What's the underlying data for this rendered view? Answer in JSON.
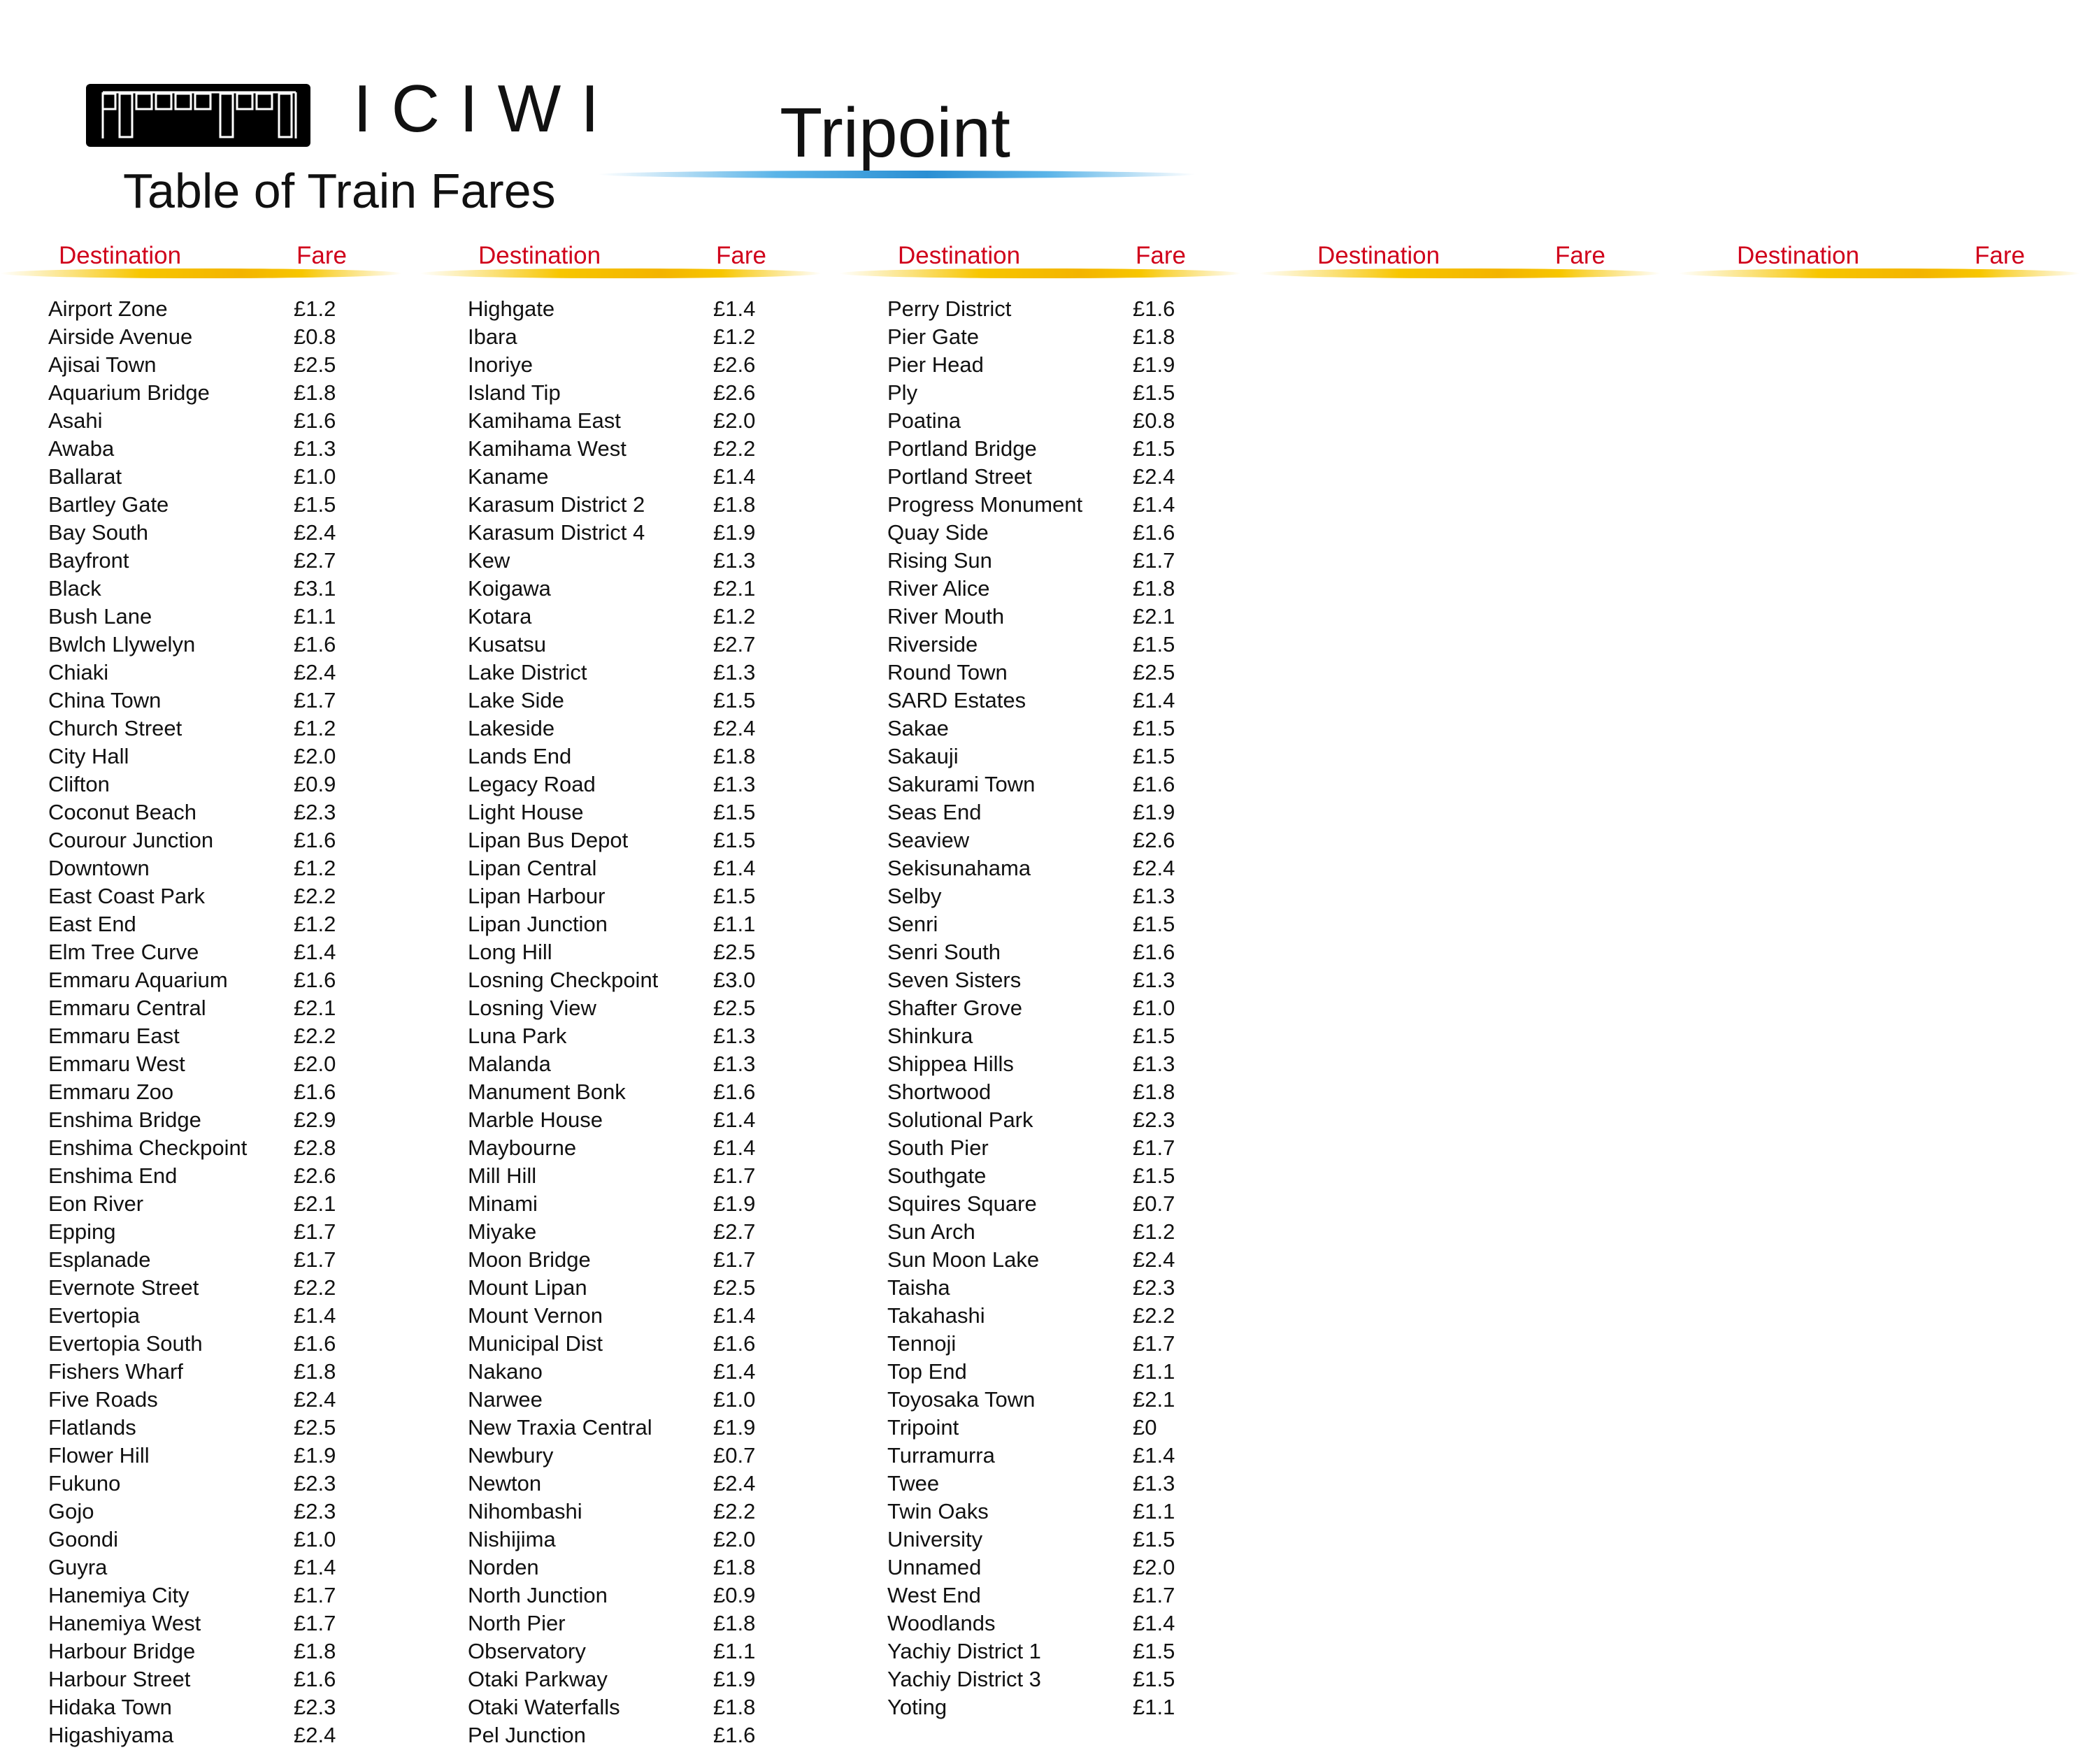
{
  "brand": {
    "name": "ICIWI",
    "subtitle": "Table of Train Fares"
  },
  "station": {
    "name": "Tripoint"
  },
  "colors": {
    "header_text": "#d0021b",
    "header_rule": "#f3b400",
    "station_rule": "#2b8fd3",
    "logo_bg": "#000000"
  },
  "icons": {
    "logo": "train-car-icon"
  },
  "table": {
    "columns": [
      {
        "dest_label": "Destination",
        "fare_label": "Fare",
        "rows": [
          {
            "d": "Airport Zone",
            "f": "£1.2"
          },
          {
            "d": "Airside Avenue",
            "f": "£0.8"
          },
          {
            "d": "Ajisai Town",
            "f": "£2.5"
          },
          {
            "d": "Aquarium Bridge",
            "f": "£1.8"
          },
          {
            "d": "Asahi",
            "f": "£1.6"
          },
          {
            "d": "Awaba",
            "f": "£1.3"
          },
          {
            "d": "Ballarat",
            "f": "£1.0"
          },
          {
            "d": "Bartley Gate",
            "f": "£1.5"
          },
          {
            "d": "Bay South",
            "f": "£2.4"
          },
          {
            "d": "Bayfront",
            "f": "£2.7"
          },
          {
            "d": "Black",
            "f": "£3.1"
          },
          {
            "d": "Bush Lane",
            "f": "£1.1"
          },
          {
            "d": "Bwlch Llywelyn",
            "f": "£1.6"
          },
          {
            "d": "Chiaki",
            "f": "£2.4"
          },
          {
            "d": "China Town",
            "f": "£1.7"
          },
          {
            "d": "Church Street",
            "f": "£1.2"
          },
          {
            "d": "City Hall",
            "f": "£2.0"
          },
          {
            "d": "Clifton",
            "f": "£0.9"
          },
          {
            "d": "Coconut Beach",
            "f": "£2.3"
          },
          {
            "d": "Courour Junction",
            "f": "£1.6"
          },
          {
            "d": "Downtown",
            "f": "£1.2"
          },
          {
            "d": "East Coast Park",
            "f": "£2.2"
          },
          {
            "d": "East End",
            "f": "£1.2"
          },
          {
            "d": "Elm Tree Curve",
            "f": "£1.4"
          },
          {
            "d": "Emmaru Aquarium",
            "f": "£1.6"
          },
          {
            "d": "Emmaru Central",
            "f": "£2.1"
          },
          {
            "d": "Emmaru East",
            "f": "£2.2"
          },
          {
            "d": "Emmaru West",
            "f": "£2.0"
          },
          {
            "d": "Emmaru Zoo",
            "f": "£1.6"
          },
          {
            "d": "Enshima Bridge",
            "f": "£2.9"
          },
          {
            "d": "Enshima Checkpoint",
            "f": "£2.8"
          },
          {
            "d": "Enshima End",
            "f": "£2.6"
          },
          {
            "d": "Eon River",
            "f": "£2.1"
          },
          {
            "d": "Epping",
            "f": "£1.7"
          },
          {
            "d": "Esplanade",
            "f": "£1.7"
          },
          {
            "d": "Evernote Street",
            "f": "£2.2"
          },
          {
            "d": "Evertopia",
            "f": "£1.4"
          },
          {
            "d": "Evertopia South",
            "f": "£1.6"
          },
          {
            "d": "Fishers Wharf",
            "f": "£1.8"
          },
          {
            "d": "Five Roads",
            "f": "£2.4"
          },
          {
            "d": "Flatlands",
            "f": "£2.5"
          },
          {
            "d": "Flower Hill",
            "f": "£1.9"
          },
          {
            "d": "Fukuno",
            "f": "£2.3"
          },
          {
            "d": "Gojo",
            "f": "£2.3"
          },
          {
            "d": "Goondi",
            "f": "£1.0"
          },
          {
            "d": "Guyra",
            "f": "£1.4"
          },
          {
            "d": "Hanemiya City",
            "f": "£1.7"
          },
          {
            "d": "Hanemiya West",
            "f": "£1.7"
          },
          {
            "d": "Harbour Bridge",
            "f": "£1.8"
          },
          {
            "d": "Harbour Street",
            "f": "£1.6"
          },
          {
            "d": "Hidaka Town",
            "f": "£2.3"
          },
          {
            "d": "Higashiyama",
            "f": "£2.4"
          }
        ]
      },
      {
        "dest_label": "Destination",
        "fare_label": "Fare",
        "rows": [
          {
            "d": "Highgate",
            "f": "£1.4"
          },
          {
            "d": "Ibara",
            "f": "£1.2"
          },
          {
            "d": "Inoriye",
            "f": "£2.6"
          },
          {
            "d": "Island Tip",
            "f": "£2.6"
          },
          {
            "d": "Kamihama East",
            "f": "£2.0"
          },
          {
            "d": "Kamihama West",
            "f": "£2.2"
          },
          {
            "d": "Kaname",
            "f": "£1.4"
          },
          {
            "d": "Karasum District 2",
            "f": "£1.8"
          },
          {
            "d": "Karasum District 4",
            "f": "£1.9"
          },
          {
            "d": "Kew",
            "f": "£1.3"
          },
          {
            "d": "Koigawa",
            "f": "£2.1"
          },
          {
            "d": "Kotara",
            "f": "£1.2"
          },
          {
            "d": "Kusatsu",
            "f": "£2.7"
          },
          {
            "d": "Lake District",
            "f": "£1.3"
          },
          {
            "d": "Lake Side",
            "f": "£1.5"
          },
          {
            "d": "Lakeside",
            "f": "£2.4"
          },
          {
            "d": "Lands End",
            "f": "£1.8"
          },
          {
            "d": "Legacy Road",
            "f": "£1.3"
          },
          {
            "d": "Light House",
            "f": "£1.5"
          },
          {
            "d": "Lipan Bus Depot",
            "f": "£1.5"
          },
          {
            "d": "Lipan Central",
            "f": "£1.4"
          },
          {
            "d": "Lipan Harbour",
            "f": "£1.5"
          },
          {
            "d": "Lipan Junction",
            "f": "£1.1"
          },
          {
            "d": "Long Hill",
            "f": "£2.5"
          },
          {
            "d": "Losning Checkpoint",
            "f": "£3.0"
          },
          {
            "d": "Losning View",
            "f": "£2.5"
          },
          {
            "d": "Luna Park",
            "f": "£1.3"
          },
          {
            "d": "Malanda",
            "f": "£1.3"
          },
          {
            "d": "Manument Bonk",
            "f": "£1.6"
          },
          {
            "d": "Marble House",
            "f": "£1.4"
          },
          {
            "d": "Maybourne",
            "f": "£1.4"
          },
          {
            "d": "Mill Hill",
            "f": "£1.7"
          },
          {
            "d": "Minami",
            "f": "£1.9"
          },
          {
            "d": "Miyake",
            "f": "£2.7"
          },
          {
            "d": "Moon Bridge",
            "f": "£1.7"
          },
          {
            "d": "Mount Lipan",
            "f": "£2.5"
          },
          {
            "d": "Mount Vernon",
            "f": "£1.4"
          },
          {
            "d": "Municipal Dist",
            "f": "£1.6"
          },
          {
            "d": "Nakano",
            "f": "£1.4"
          },
          {
            "d": "Narwee",
            "f": "£1.0"
          },
          {
            "d": "New Traxia Central",
            "f": "£1.9"
          },
          {
            "d": "Newbury",
            "f": "£0.7"
          },
          {
            "d": "Newton",
            "f": "£2.4"
          },
          {
            "d": "Nihombashi",
            "f": "£2.2"
          },
          {
            "d": "Nishijima",
            "f": "£2.0"
          },
          {
            "d": "Norden",
            "f": "£1.8"
          },
          {
            "d": "North Junction",
            "f": "£0.9"
          },
          {
            "d": "North Pier",
            "f": "£1.8"
          },
          {
            "d": "Observatory",
            "f": "£1.1"
          },
          {
            "d": "Otaki Parkway",
            "f": "£1.9"
          },
          {
            "d": "Otaki Waterfalls",
            "f": "£1.8"
          },
          {
            "d": "Pel Junction",
            "f": "£1.6"
          }
        ]
      },
      {
        "dest_label": "Destination",
        "fare_label": "Fare",
        "rows": [
          {
            "d": "Perry District",
            "f": "£1.6"
          },
          {
            "d": "Pier Gate",
            "f": "£1.8"
          },
          {
            "d": "Pier Head",
            "f": "£1.9"
          },
          {
            "d": "Ply",
            "f": "£1.5"
          },
          {
            "d": "Poatina",
            "f": "£0.8"
          },
          {
            "d": "Portland Bridge",
            "f": "£1.5"
          },
          {
            "d": "Portland Street",
            "f": "£2.4"
          },
          {
            "d": "Progress Monument",
            "f": "£1.4"
          },
          {
            "d": "Quay Side",
            "f": "£1.6"
          },
          {
            "d": "Rising Sun",
            "f": "£1.7"
          },
          {
            "d": "River Alice",
            "f": "£1.8"
          },
          {
            "d": "River Mouth",
            "f": "£2.1"
          },
          {
            "d": "Riverside",
            "f": "£1.5"
          },
          {
            "d": "Round Town",
            "f": "£2.5"
          },
          {
            "d": "SARD Estates",
            "f": "£1.4"
          },
          {
            "d": "Sakae",
            "f": "£1.5"
          },
          {
            "d": "Sakauji",
            "f": "£1.5"
          },
          {
            "d": "Sakurami Town",
            "f": "£1.6"
          },
          {
            "d": "Seas End",
            "f": "£1.9"
          },
          {
            "d": "Seaview",
            "f": "£2.6"
          },
          {
            "d": "Sekisunahama",
            "f": "£2.4"
          },
          {
            "d": "Selby",
            "f": "£1.3"
          },
          {
            "d": "Senri",
            "f": "£1.5"
          },
          {
            "d": "Senri South",
            "f": "£1.6"
          },
          {
            "d": "Seven Sisters",
            "f": "£1.3"
          },
          {
            "d": "Shafter Grove",
            "f": "£1.0"
          },
          {
            "d": "Shinkura",
            "f": "£1.5"
          },
          {
            "d": "Shippea Hills",
            "f": "£1.3"
          },
          {
            "d": "Shortwood",
            "f": "£1.8"
          },
          {
            "d": "Solutional Park",
            "f": "£2.3"
          },
          {
            "d": "South Pier",
            "f": "£1.7"
          },
          {
            "d": "Southgate",
            "f": "£1.5"
          },
          {
            "d": "Squires Square",
            "f": "£0.7"
          },
          {
            "d": "Sun Arch",
            "f": "£1.2"
          },
          {
            "d": "Sun Moon Lake",
            "f": "£2.4"
          },
          {
            "d": "Taisha",
            "f": "£2.3"
          },
          {
            "d": "Takahashi",
            "f": "£2.2"
          },
          {
            "d": "Tennoji",
            "f": "£1.7"
          },
          {
            "d": "Top End",
            "f": "£1.1"
          },
          {
            "d": "Toyosaka Town",
            "f": "£2.1"
          },
          {
            "d": "Tripoint",
            "f": "£0"
          },
          {
            "d": "Turramurra",
            "f": "£1.4"
          },
          {
            "d": "Twee",
            "f": "£1.3"
          },
          {
            "d": "Twin Oaks",
            "f": "£1.1"
          },
          {
            "d": "University",
            "f": "£1.5"
          },
          {
            "d": "Unnamed",
            "f": "£2.0"
          },
          {
            "d": "West End",
            "f": "£1.7"
          },
          {
            "d": "Woodlands",
            "f": "£1.4"
          },
          {
            "d": "Yachiy District 1",
            "f": "£1.5"
          },
          {
            "d": "Yachiy District 3",
            "f": "£1.5"
          },
          {
            "d": "Yoting",
            "f": "£1.1"
          }
        ]
      },
      {
        "dest_label": "Destination",
        "fare_label": "Fare",
        "rows": []
      },
      {
        "dest_label": "Destination",
        "fare_label": "Fare",
        "rows": []
      }
    ]
  }
}
